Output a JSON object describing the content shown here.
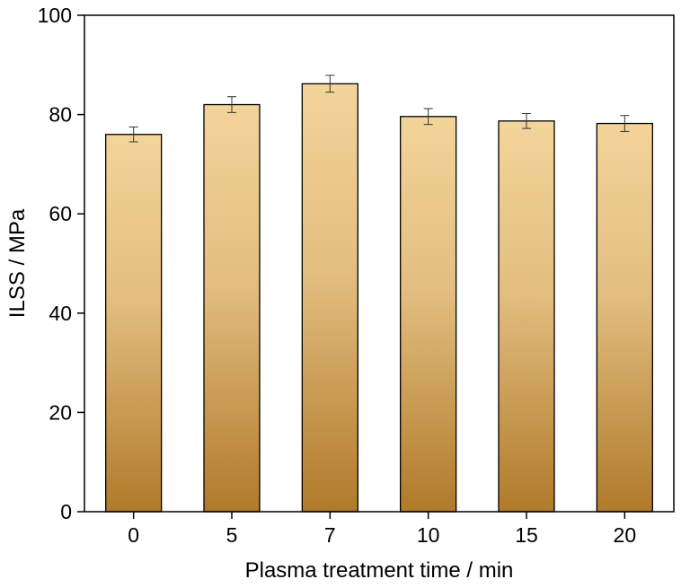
{
  "chart_data": {
    "type": "bar",
    "title": "",
    "xlabel": "Plasma treatment time / min",
    "ylabel": "ILSS / MPa",
    "categories": [
      "0",
      "5",
      "7",
      "10",
      "15",
      "20"
    ],
    "values": [
      76.0,
      82.0,
      86.2,
      79.6,
      78.7,
      78.2
    ],
    "errors": [
      1.5,
      1.6,
      1.7,
      1.6,
      1.5,
      1.6
    ],
    "ylim": [
      0,
      100
    ],
    "yticks": [
      "0",
      "20",
      "40",
      "60",
      "80",
      "100"
    ],
    "grid": false,
    "legend": "none",
    "colors": {
      "bar_top": "#f3d49a",
      "bar_bottom": "#b07a2a",
      "bar_edge": "#000000",
      "axis": "#000000"
    }
  }
}
